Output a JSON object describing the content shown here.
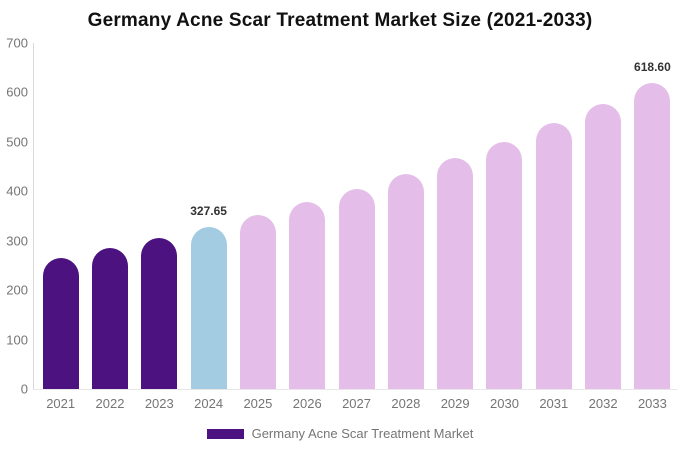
{
  "title": "Germany Acne Scar Treatment Market Size (2021-2033)",
  "legend": {
    "label": "Germany Acne Scar Treatment Market",
    "swatch_color": "#4C1380"
  },
  "colors": {
    "historical_bar": "#4C1380",
    "base_year_bar": "#A3CBE1",
    "forecast_bar": "#E4BEE9",
    "axis_text": "#757575",
    "title_text": "#111111",
    "data_label_text": "#333333",
    "axis_line": "#d9d9d9"
  },
  "chart_data": {
    "type": "bar",
    "title": "Germany Acne Scar Treatment Market Size (2021-2033)",
    "xlabel": "",
    "ylabel": "",
    "ylim": [
      0,
      700
    ],
    "y_ticks": [
      0,
      100,
      200,
      300,
      400,
      500,
      600,
      700
    ],
    "grid": false,
    "legend_position": "bottom",
    "categories": [
      "2021",
      "2022",
      "2023",
      "2024",
      "2025",
      "2026",
      "2027",
      "2028",
      "2029",
      "2030",
      "2031",
      "2032",
      "2033"
    ],
    "values": [
      265.1,
      284.6,
      305.4,
      327.65,
      351.6,
      377.4,
      405.0,
      434.6,
      466.4,
      500.6,
      537.2,
      576.6,
      618.6
    ],
    "point_labels": [
      "",
      "",
      "",
      "327.65",
      "",
      "",
      "",
      "",
      "",
      "",
      "",
      "",
      "618.60"
    ],
    "bar_colors": [
      "#4C1380",
      "#4C1380",
      "#4C1380",
      "#A3CBE1",
      "#E4BEE9",
      "#E4BEE9",
      "#E4BEE9",
      "#E4BEE9",
      "#E4BEE9",
      "#E4BEE9",
      "#E4BEE9",
      "#E4BEE9",
      "#E4BEE9"
    ]
  }
}
